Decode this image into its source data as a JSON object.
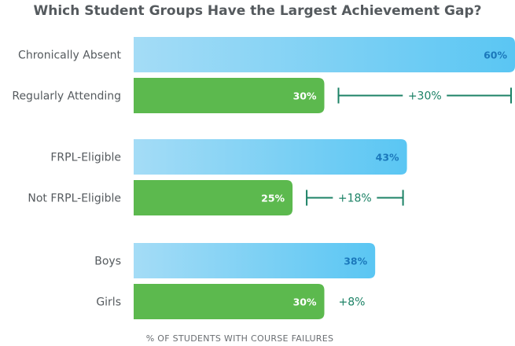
{
  "chart_data": {
    "type": "bar",
    "orientation": "horizontal",
    "title": "Which Student Groups Have the Largest Achievement Gap?",
    "xlabel": "% OF STUDENTS WITH COURSE FAILURES",
    "xlim": [
      0,
      60
    ],
    "grid": false,
    "groups": [
      {
        "bars": [
          {
            "category": "Chronically Absent",
            "value": 60,
            "label": "60%",
            "style": "blue"
          },
          {
            "category": "Regularly Attending",
            "value": 30,
            "label": "30%",
            "style": "green"
          }
        ],
        "gap": {
          "label": "+30%",
          "bracket": true
        }
      },
      {
        "bars": [
          {
            "category": "FRPL-Eligible",
            "value": 43,
            "label": "43%",
            "style": "blue"
          },
          {
            "category": "Not FRPL-Eligible",
            "value": 25,
            "label": "25%",
            "style": "green"
          }
        ],
        "gap": {
          "label": "+18%",
          "bracket": true
        }
      },
      {
        "bars": [
          {
            "category": "Boys",
            "value": 38,
            "label": "38%",
            "style": "blue"
          },
          {
            "category": "Girls",
            "value": 30,
            "label": "30%",
            "style": "green"
          }
        ],
        "gap": {
          "label": "+8%",
          "bracket": false
        }
      }
    ]
  },
  "colors": {
    "blue_start": "#a4dcf6",
    "blue_end": "#5ac6f3",
    "blue_text": "#1b78bb",
    "green": "#5cb94e",
    "green_text": "#ffffff",
    "gap_color": "#1c8266",
    "category_text": "#555a5e"
  }
}
